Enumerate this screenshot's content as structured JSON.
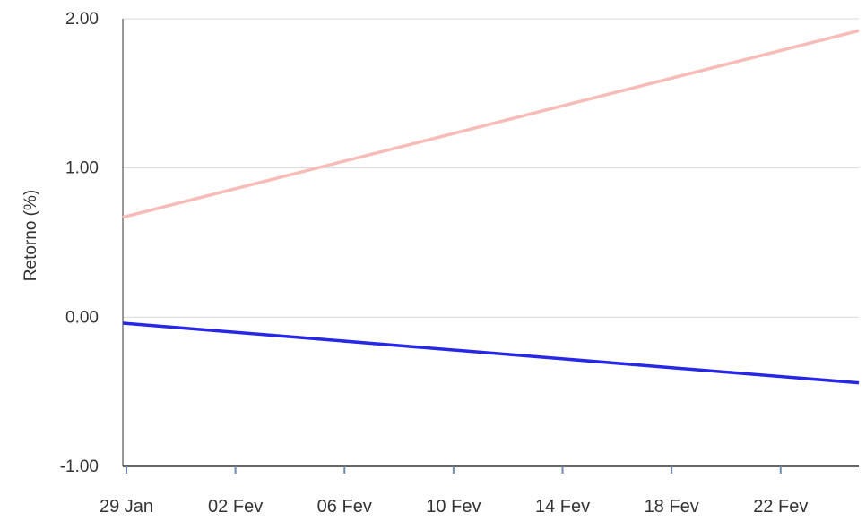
{
  "chart_data": {
    "type": "line",
    "title": "",
    "xlabel": "",
    "ylabel": "Retorno (%)",
    "ylim": [
      -1,
      2
    ],
    "xlim": [
      "2024-01-29",
      "2024-02-25"
    ],
    "y_ticks": [
      {
        "value": -1,
        "label": "-1.00"
      },
      {
        "value": 0,
        "label": "0.00"
      },
      {
        "value": 1,
        "label": "1.00"
      },
      {
        "value": 2,
        "label": "2.00"
      }
    ],
    "x_ticks": [
      {
        "value": "2024-01-29",
        "label": "29 Jan"
      },
      {
        "value": "2024-02-02",
        "label": "02 Fev"
      },
      {
        "value": "2024-02-06",
        "label": "06 Fev"
      },
      {
        "value": "2024-02-10",
        "label": "10 Fev"
      },
      {
        "value": "2024-02-14",
        "label": "14 Fev"
      },
      {
        "value": "2024-02-18",
        "label": "18 Fev"
      },
      {
        "value": "2024-02-22",
        "label": "22 Fev"
      }
    ],
    "grid": true,
    "legend": "none",
    "series": [
      {
        "color": "#f7bcb7",
        "points": [
          {
            "x": "2024-01-29",
            "y": 0.67
          },
          {
            "x": "2024-02-25",
            "y": 1.92
          }
        ]
      },
      {
        "color": "#2727e6",
        "points": [
          {
            "x": "2024-01-29",
            "y": -0.04
          },
          {
            "x": "2024-02-25",
            "y": -0.44
          }
        ]
      }
    ]
  }
}
